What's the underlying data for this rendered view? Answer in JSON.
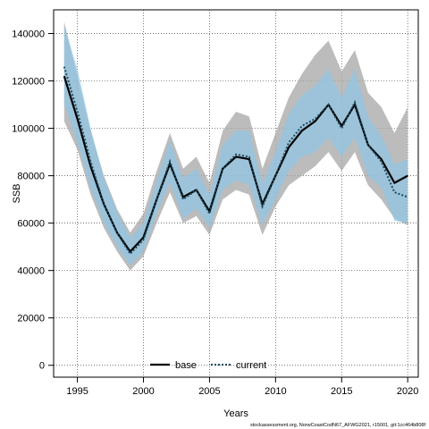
{
  "chart_data": {
    "type": "line",
    "xlabel": "Years",
    "ylabel": "SSB",
    "xlim": [
      1993.2,
      2020.8
    ],
    "ylim": [
      -5000,
      150000
    ],
    "x_ticks": [
      1995,
      2000,
      2005,
      2010,
      2015,
      2020
    ],
    "y_ticks": [
      0,
      20000,
      40000,
      60000,
      80000,
      100000,
      120000,
      140000
    ],
    "grid": true,
    "legend_position": "bottom",
    "footnote": "stockassessment.org, NorwCoastCodN67_AFWG2021, r15001, git:1cc464b808f",
    "colors": {
      "base_line": "#000000",
      "base_band": "#a6a6a6",
      "current_line": "#1b4a5e",
      "current_band": "#8ec6e6"
    },
    "x": [
      1994,
      1995,
      1996,
      1997,
      1998,
      1999,
      2000,
      2001,
      2002,
      2003,
      2004,
      2005,
      2006,
      2007,
      2008,
      2009,
      2010,
      2011,
      2012,
      2013,
      2014,
      2015,
      2016,
      2017,
      2018,
      2019,
      2020
    ],
    "series": [
      {
        "name": "base",
        "style": "solid",
        "values": [
          122000,
          104000,
          84000,
          68000,
          56000,
          48000,
          54000,
          70000,
          85000,
          71000,
          74000,
          65000,
          83000,
          88000,
          87000,
          68000,
          80000,
          92000,
          99000,
          103000,
          110000,
          101000,
          110000,
          93000,
          87000,
          77000,
          80000
        ],
        "lower": [
          103000,
          91000,
          72000,
          58000,
          48000,
          40000,
          46000,
          60000,
          73000,
          60000,
          63000,
          55000,
          70000,
          74000,
          72000,
          55000,
          67000,
          76000,
          80000,
          84000,
          90000,
          82000,
          90000,
          76000,
          70000,
          62000,
          59000
        ],
        "upper": [
          145000,
          122000,
          99000,
          80000,
          66000,
          56000,
          64000,
          82000,
          98000,
          83000,
          88000,
          77000,
          99000,
          107000,
          105000,
          83000,
          98000,
          113000,
          123000,
          131000,
          137000,
          124000,
          133000,
          115000,
          109000,
          98000,
          109000
        ]
      },
      {
        "name": "current",
        "style": "dotted",
        "values": [
          126000,
          107000,
          86000,
          68000,
          56000,
          47000,
          53000,
          70000,
          86000,
          70000,
          74000,
          64000,
          83000,
          89000,
          88000,
          67000,
          80000,
          94000,
          101000,
          104000,
          110000,
          100000,
          111000,
          93000,
          86000,
          73000,
          71000
        ],
        "lower": [
          110000,
          94000,
          75000,
          60000,
          50000,
          42000,
          48000,
          64000,
          77000,
          62000,
          66000,
          58000,
          74000,
          78000,
          76000,
          59000,
          70000,
          82000,
          88000,
          90000,
          96000,
          88000,
          96000,
          80000,
          75000,
          61000,
          60000
        ],
        "upper": [
          143000,
          125000,
          100000,
          79000,
          65000,
          54000,
          60000,
          78000,
          95000,
          79000,
          83000,
          72000,
          93000,
          99000,
          99000,
          77000,
          90000,
          106000,
          114000,
          118000,
          125000,
          113000,
          125000,
          105000,
          97000,
          85000,
          87000
        ]
      }
    ]
  }
}
